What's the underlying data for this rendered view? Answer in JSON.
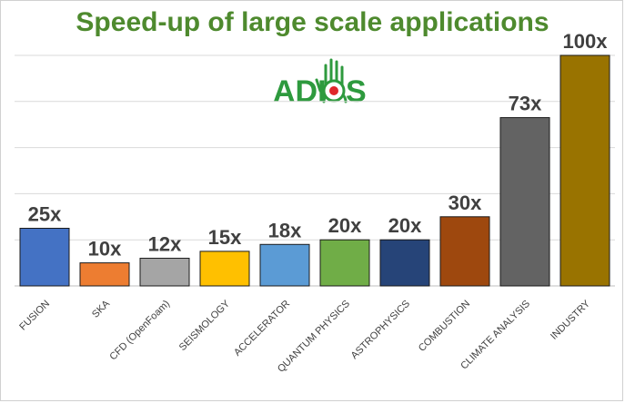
{
  "chart_data": {
    "type": "bar",
    "title": "Speed-up of large scale applications",
    "categories": [
      "FUSION",
      "SKA",
      "CFD (OpenFoam)",
      "SEISMOLOGY",
      "ACCELERATOR",
      "QUANTUM PHYSICS",
      "ASTROPHYSICS",
      "COMBUSTION",
      "CLIMATE ANALYSIS",
      "INDUSTRY"
    ],
    "values": [
      25,
      10,
      12,
      15,
      18,
      20,
      20,
      30,
      73,
      100
    ],
    "data_labels": [
      "25x",
      "10x",
      "12x",
      "15x",
      "18x",
      "20x",
      "20x",
      "30x",
      "73x",
      "100x"
    ],
    "bar_colors": [
      "#4472c4",
      "#ed7d31",
      "#a5a5a5",
      "#ffc000",
      "#5b9bd5",
      "#70ad47",
      "#264478",
      "#9e480e",
      "#636363",
      "#997300"
    ],
    "ylim": [
      0,
      100
    ],
    "grid": true,
    "xlabel": "",
    "ylabel": ""
  },
  "logo": {
    "text": "ADIOS",
    "colors": {
      "text": "#2e9a3e",
      "dot": "#e0262b"
    }
  }
}
